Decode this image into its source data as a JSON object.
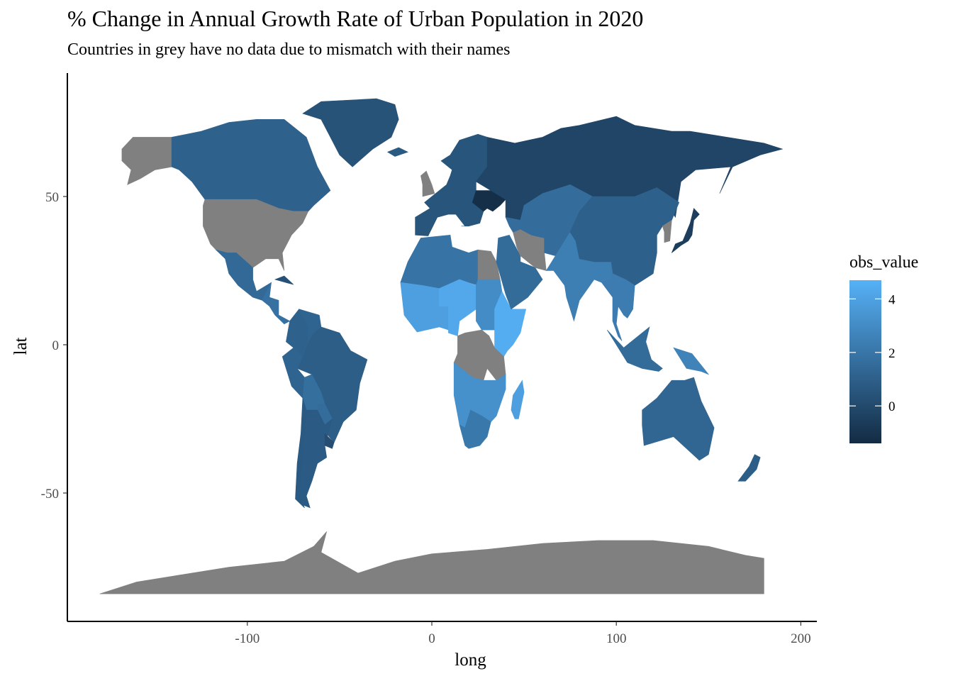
{
  "header": {
    "title": "% Change in Annual Growth Rate of Urban Population in 2020",
    "subtitle": "Countries in grey have no data due to mismatch with their names"
  },
  "chart_data": {
    "type": "choropleth-map",
    "xlabel": "long",
    "ylabel": "lat",
    "xticks": [
      -100,
      0,
      100,
      200
    ],
    "xtick_labels": [
      "-100",
      "0",
      "100",
      "200"
    ],
    "yticks": [
      50,
      0,
      -50
    ],
    "ytick_labels": [
      "50",
      "0",
      "-50"
    ],
    "xlim": [
      -190,
      210
    ],
    "ylim": [
      -92,
      91
    ],
    "grid": false,
    "na_color": "#808080",
    "legend": {
      "title": "obs_value",
      "position": "right",
      "breaks": [
        4,
        2,
        0
      ],
      "labels": [
        "4",
        "2",
        "0"
      ],
      "range": [
        -1.4,
        4.7
      ],
      "low_color": "#132B43",
      "high_color": "#56B1F7"
    },
    "regions": [
      {
        "name": "Alaska",
        "value": null
      },
      {
        "name": "Canada",
        "value": 1.1
      },
      {
        "name": "United States",
        "value": null
      },
      {
        "name": "Mexico",
        "value": 1.4
      },
      {
        "name": "Central America",
        "value": 1.8
      },
      {
        "name": "Cuba",
        "value": 0.3
      },
      {
        "name": "Greenland",
        "value": 0.4
      },
      {
        "name": "Iceland",
        "value": 0.7
      },
      {
        "name": "Brazil",
        "value": 0.9
      },
      {
        "name": "Colombia",
        "value": 1.1
      },
      {
        "name": "Venezuela",
        "value": 1.2
      },
      {
        "name": "Peru",
        "value": 1.2
      },
      {
        "name": "Bolivia",
        "value": 1.7
      },
      {
        "name": "Paraguay",
        "value": 1.6
      },
      {
        "name": "Argentina",
        "value": 0.8
      },
      {
        "name": "Chile",
        "value": 0.7
      },
      {
        "name": "Uruguay",
        "value": 0.2
      },
      {
        "name": "United Kingdom",
        "value": null
      },
      {
        "name": "Western Europe",
        "value": 0.5
      },
      {
        "name": "Ukraine",
        "value": -1.2
      },
      {
        "name": "Russia",
        "value": -0.2
      },
      {
        "name": "North Africa",
        "value": 1.9
      },
      {
        "name": "West Africa",
        "value": 3.9
      },
      {
        "name": "Sahel",
        "value": 4.3
      },
      {
        "name": "Sudan",
        "value": 3.0
      },
      {
        "name": "Ethiopia",
        "value": 4.5
      },
      {
        "name": "Congo DR",
        "value": null
      },
      {
        "name": "Tanzania",
        "value": null
      },
      {
        "name": "Southern Africa",
        "value": 3.2
      },
      {
        "name": "South Africa",
        "value": 2.1
      },
      {
        "name": "Madagascar",
        "value": 3.9
      },
      {
        "name": "Egypt",
        "value": null
      },
      {
        "name": "Arabian Peninsula",
        "value": 1.5
      },
      {
        "name": "Iran",
        "value": null
      },
      {
        "name": "Central Asia",
        "value": 1.6
      },
      {
        "name": "India",
        "value": 2.4
      },
      {
        "name": "China",
        "value": 1.0
      },
      {
        "name": "Korea",
        "value": null
      },
      {
        "name": "Japan",
        "value": -0.6
      },
      {
        "name": "Southeast Asia",
        "value": 2.3
      },
      {
        "name": "Indonesia",
        "value": 1.5
      },
      {
        "name": "New Guinea",
        "value": 2.6
      },
      {
        "name": "Australia",
        "value": 1.3
      },
      {
        "name": "New Zealand",
        "value": 0.9
      },
      {
        "name": "Antarctica",
        "value": null
      }
    ]
  }
}
